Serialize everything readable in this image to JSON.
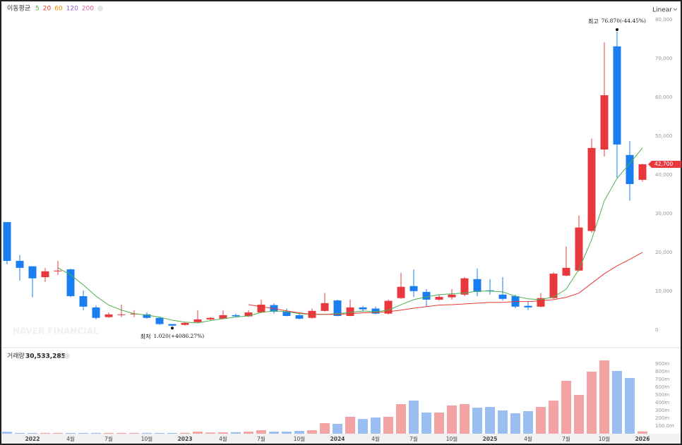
{
  "chart_data": [
    {
      "type": "candlestick",
      "scale_label": "Linear",
      "watermark": "NAVER FINANCIAL",
      "legend": {
        "title": "이동평균"
      },
      "up_color": "#e8383d",
      "down_color": "#1a7ef0",
      "categories": [
        null,
        null,
        "2022",
        null,
        null,
        "4월",
        null,
        null,
        "7월",
        null,
        null,
        "10월",
        null,
        null,
        "2023",
        null,
        null,
        "4월",
        null,
        null,
        "7월",
        null,
        null,
        "10월",
        null,
        null,
        "2024",
        null,
        null,
        "4월",
        null,
        null,
        "7월",
        null,
        null,
        "10월",
        null,
        null,
        "2025",
        null,
        null,
        "4월",
        null,
        null,
        "7월",
        null,
        null,
        "10월",
        null,
        null,
        "2026"
      ],
      "open": [
        27800,
        17800,
        16400,
        13600,
        15100,
        15600,
        8700,
        5800,
        3300,
        3900,
        4000,
        4000,
        3100,
        1500,
        1300,
        2000,
        2700,
        2900,
        3800,
        3500,
        4500,
        6400,
        4700,
        3800,
        3100,
        4900,
        7600,
        3600,
        5800,
        5500,
        4200,
        8200,
        11300,
        9800,
        7800,
        8400,
        9100,
        13100,
        10200,
        9100,
        8700,
        6200,
        6000,
        8200,
        14000,
        15300,
        25500,
        46500,
        73100,
        45100,
        38700
      ],
      "high": [
        27800,
        19300,
        16400,
        16000,
        17800,
        15800,
        10200,
        6300,
        4500,
        6500,
        5100,
        4500,
        3400,
        1500,
        2000,
        5100,
        3300,
        5100,
        4200,
        5100,
        7800,
        6900,
        5500,
        4200,
        5500,
        9500,
        7800,
        7800,
        6200,
        6000,
        7800,
        14700,
        15600,
        10500,
        9100,
        10500,
        13600,
        15800,
        13100,
        13600,
        9100,
        7300,
        9500,
        14800,
        21500,
        29500,
        49300,
        74200,
        76870,
        48700,
        42900
      ],
      "low": [
        16900,
        12700,
        8400,
        12400,
        14200,
        8400,
        5100,
        2700,
        3100,
        3300,
        3300,
        2900,
        1300,
        1020,
        1100,
        1800,
        2400,
        2700,
        3300,
        3300,
        4400,
        4200,
        3500,
        2700,
        2900,
        4700,
        3500,
        3500,
        4700,
        4000,
        4000,
        8000,
        8500,
        6000,
        7500,
        7800,
        8700,
        8700,
        9100,
        7500,
        5600,
        5100,
        5800,
        8000,
        13800,
        15100,
        25100,
        44700,
        39300,
        33300,
        38200
      ],
      "close": [
        17800,
        16000,
        13300,
        15100,
        15300,
        8700,
        6000,
        3100,
        4000,
        4000,
        4200,
        3100,
        1500,
        1100,
        1800,
        2700,
        3100,
        3800,
        3500,
        4500,
        6500,
        4700,
        3600,
        2900,
        4900,
        6900,
        3600,
        5800,
        5300,
        4200,
        7500,
        11100,
        10000,
        7800,
        8500,
        9100,
        13300,
        9800,
        10000,
        8000,
        6000,
        5800,
        8200,
        14500,
        16000,
        26400,
        46900,
        60500,
        47800,
        37600,
        42700
      ],
      "series": [
        {
          "name": "5",
          "color": "#4caf50",
          "values": [
            null,
            null,
            null,
            null,
            16000,
            14200,
            11600,
            8700,
            6400,
            5100,
            4200,
            3800,
            3300,
            2500,
            2000,
            1800,
            2400,
            2900,
            3300,
            3600,
            4500,
            4900,
            4700,
            4200,
            4000,
            4000,
            4200,
            4500,
            4900,
            4700,
            5100,
            6500,
            7800,
            8500,
            9100,
            9300,
            9500,
            10000,
            10000,
            9800,
            8700,
            8000,
            7800,
            8500,
            10500,
            15600,
            23300,
            33300,
            39100,
            42900,
            46900
          ]
        },
        {
          "name": "20",
          "color": "#e53935",
          "values": [
            null,
            null,
            null,
            null,
            null,
            null,
            null,
            null,
            null,
            null,
            null,
            null,
            null,
            null,
            null,
            null,
            null,
            null,
            null,
            6500,
            6000,
            5500,
            4900,
            4400,
            4000,
            4000,
            4000,
            4200,
            4400,
            4500,
            4700,
            5100,
            5600,
            6000,
            6400,
            6500,
            6700,
            6900,
            7100,
            7100,
            7300,
            7300,
            7500,
            7800,
            8400,
            9500,
            12000,
            14500,
            16500,
            18200,
            20000
          ]
        },
        {
          "name": "60",
          "color": "#f08c00"
        },
        {
          "name": "120",
          "color": "#9c5fd6"
        },
        {
          "name": "200",
          "color": "#e0609a"
        }
      ],
      "max_label": {
        "label": "최고",
        "text": "76.870(-44.45%)"
      },
      "min_label": {
        "label": "최저",
        "text": "1.020(+4086.27%)"
      },
      "last_price_label": "42,700",
      "ylim": [
        -4400,
        83600
      ],
      "yticks": [
        0,
        {
          "value": 10000,
          "label": "10,000"
        },
        {
          "value": 20000,
          "label": "20,000"
        },
        {
          "value": 30000,
          "label": "30,000"
        },
        {
          "value": 40000,
          "label": "40,000"
        },
        {
          "value": 50000,
          "label": "50,000"
        },
        {
          "value": 60000,
          "label": "60,000"
        },
        {
          "value": 70000,
          "label": "70,000"
        },
        {
          "value": 80000,
          "label": "80,000"
        }
      ],
      "grid": false
    },
    {
      "type": "bar",
      "title": "거래량",
      "total_label": "30,533,285",
      "up_color": "#f4a3a5",
      "down_color": "#9bbef2",
      "values": [
        25,
        10,
        10,
        10,
        10,
        10,
        10,
        10,
        10,
        10,
        10,
        10,
        10,
        10,
        12,
        27,
        15,
        18,
        20,
        27,
        45,
        27,
        27,
        36,
        45,
        136,
        127,
        218,
        190,
        209,
        218,
        382,
        427,
        273,
        273,
        364,
        382,
        336,
        345,
        300,
        264,
        291,
        345,
        427,
        682,
        500,
        800,
        945,
        809,
        718,
        30.533285
      ],
      "ylim": [
        0,
        1000
      ],
      "yticks": [
        {
          "value": 100,
          "label": "100.0m"
        },
        {
          "value": 200,
          "label": "200m"
        },
        {
          "value": 300,
          "label": "300m"
        },
        {
          "value": 400,
          "label": "400m"
        },
        {
          "value": 500,
          "label": "500m"
        },
        {
          "value": 600,
          "label": "600m"
        },
        {
          "value": 700,
          "label": "700m"
        },
        {
          "value": 800,
          "label": "800m"
        },
        {
          "value": 900,
          "label": "900m"
        }
      ],
      "grid": false
    }
  ]
}
